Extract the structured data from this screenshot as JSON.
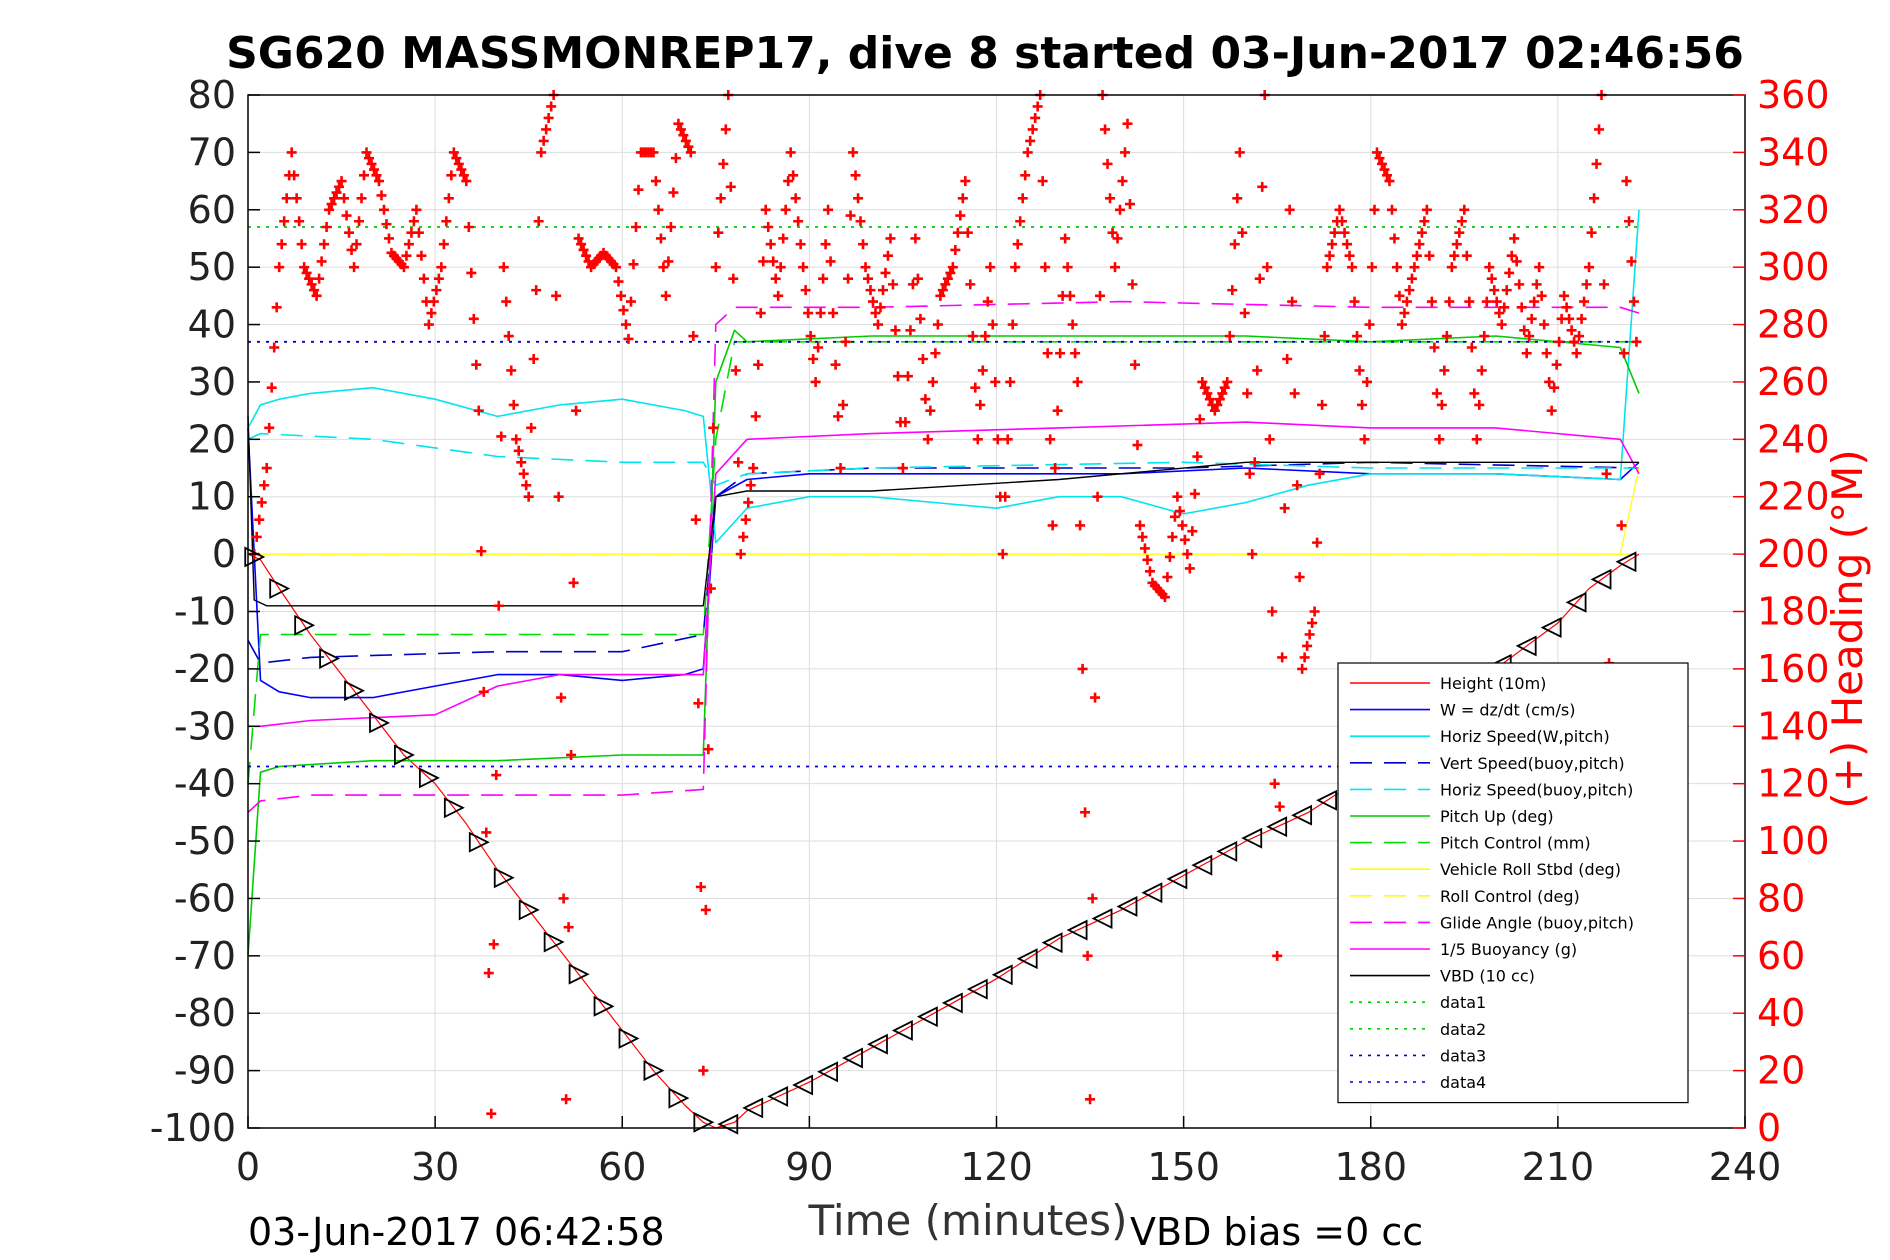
{
  "chart_data": {
    "type": "line",
    "title": "SG620 MASSMONREP17, dive 8 started 03-Jun-2017 02:46:56",
    "xlabel": "Time (minutes)",
    "ylabel_right": "(+) Heading (°M)",
    "xlim": [
      0,
      240
    ],
    "ylim": [
      -100,
      80
    ],
    "ylim_right": [
      0,
      360
    ],
    "x_ticks": [
      "0",
      "30",
      "60",
      "90",
      "120",
      "150",
      "180",
      "210",
      "240"
    ],
    "y_ticks": [
      "80",
      "70",
      "60",
      "50",
      "40",
      "30",
      "20",
      "10",
      "0",
      "-10",
      "-20",
      "-30",
      "-40",
      "-50",
      "-60",
      "-70",
      "-80",
      "-90",
      "-100"
    ],
    "y_right_ticks": [
      "360",
      "340",
      "320",
      "300",
      "280",
      "260",
      "240",
      "220",
      "200",
      "180",
      "160",
      "140",
      "120",
      "100",
      "80",
      "60",
      "40",
      "20",
      "0"
    ],
    "grid": true,
    "legend_position": "lower-right",
    "footer_left": "03-Jun-2017 06:42:58",
    "footer_right": "VBD bias =0 cc",
    "colors": {
      "height": "#ff0000",
      "w": "#0000ff",
      "hspeed": "#00e5ee",
      "vert_buoy": "#0000cc",
      "horiz_buoy": "#00e5ee",
      "pitch_up": "#00cc00",
      "pitch_ctrl": "#00dd00",
      "roll": "#ffff00",
      "roll_ctrl": "#ffff00",
      "glide": "#ff00ff",
      "buoyancy": "#ff00ff",
      "vbd": "#000000",
      "data12": "#00cc00",
      "data34": "#0000cc",
      "heading": "#ff0000"
    },
    "series": [
      {
        "key": "height",
        "name": "Height (10m)",
        "x": [
          0,
          2,
          5,
          10,
          15,
          20,
          25,
          30,
          35,
          40,
          45,
          50,
          55,
          60,
          65,
          70,
          73,
          75,
          78,
          80,
          90,
          100,
          110,
          120,
          130,
          140,
          150,
          160,
          170,
          180,
          190,
          200,
          210,
          215,
          220,
          223
        ],
        "values": [
          0,
          -1,
          -6,
          -14,
          -21,
          -28,
          -35,
          -40,
          -47,
          -55,
          -62,
          -69,
          -76,
          -83,
          -90,
          -96,
          -99,
          -100,
          -99,
          -97,
          -92,
          -86,
          -80,
          -74,
          -67,
          -62,
          -56,
          -50,
          -45,
          -38,
          -30,
          -20,
          -12,
          -6,
          -2,
          0
        ]
      },
      {
        "key": "w",
        "name": "W = dz/dt (cm/s)",
        "x": [
          0,
          2,
          5,
          10,
          20,
          30,
          40,
          50,
          60,
          70,
          73,
          75,
          80,
          90,
          100,
          120,
          140,
          160,
          180,
          200,
          220,
          223
        ],
        "values": [
          22,
          -22,
          -24,
          -25,
          -25,
          -23,
          -21,
          -21,
          -22,
          -21,
          -20,
          10,
          13,
          14,
          14,
          14,
          14,
          15,
          14,
          14,
          13,
          16
        ]
      },
      {
        "key": "hspeed",
        "name": "Horiz Speed(W,pitch)",
        "x": [
          0,
          2,
          5,
          10,
          20,
          30,
          40,
          50,
          60,
          70,
          73,
          75,
          80,
          90,
          100,
          110,
          120,
          130,
          140,
          150,
          160,
          170,
          180,
          200,
          220,
          223
        ],
        "values": [
          22,
          26,
          27,
          28,
          29,
          27,
          24,
          26,
          27,
          25,
          24,
          2,
          8,
          10,
          10,
          9,
          8,
          10,
          10,
          7,
          9,
          12,
          14,
          14,
          13,
          60
        ]
      },
      {
        "key": "vert_buoy",
        "name": "Vert Speed(buoy,pitch)",
        "x": [
          0,
          2,
          10,
          40,
          60,
          73,
          75,
          80,
          100,
          150,
          180,
          223
        ],
        "values": [
          -15,
          -19,
          -18,
          -17,
          -17,
          -14,
          10,
          14,
          15,
          15,
          16,
          15
        ]
      },
      {
        "key": "horiz_buoy",
        "name": "Horiz Speed(buoy,pitch)",
        "x": [
          0,
          2,
          20,
          40,
          60,
          73,
          75,
          80,
          100,
          150,
          180,
          223
        ],
        "values": [
          20,
          21,
          20,
          17,
          16,
          16,
          12,
          14,
          15,
          16,
          15,
          15
        ]
      },
      {
        "key": "pitch_up",
        "name": "Pitch Up (deg)",
        "x": [
          0,
          2,
          5,
          20,
          40,
          60,
          73,
          75,
          78,
          80,
          100,
          120,
          140,
          160,
          180,
          200,
          220,
          223
        ],
        "values": [
          -70,
          -38,
          -37,
          -36,
          -36,
          -35,
          -35,
          30,
          39,
          37,
          38,
          38,
          38,
          38,
          37,
          38,
          36,
          28
        ]
      },
      {
        "key": "pitch_ctrl",
        "name": "Pitch Control (mm)",
        "x": [
          0,
          2,
          73,
          75,
          78,
          223
        ],
        "values": [
          -40,
          -14,
          -14,
          20,
          37,
          37
        ]
      },
      {
        "key": "roll",
        "name": "Vehicle Roll Stbd (deg)",
        "x": [
          0,
          2,
          5,
          20,
          40,
          60,
          73,
          75,
          80,
          100,
          120,
          140,
          160,
          180,
          200,
          220,
          223
        ],
        "values": [
          0,
          0,
          0,
          0,
          0,
          0,
          0,
          0,
          0,
          0,
          0,
          0,
          0,
          0,
          0,
          0,
          15
        ]
      },
      {
        "key": "roll_ctrl",
        "name": "Roll Control (deg)",
        "x": [
          0,
          223
        ],
        "values": [
          0,
          0
        ]
      },
      {
        "key": "glide",
        "name": "Glide Angle (buoy,pitch)",
        "x": [
          0,
          2,
          10,
          40,
          60,
          73,
          75,
          78,
          100,
          140,
          180,
          220,
          223
        ],
        "values": [
          -45,
          -43,
          -42,
          -42,
          -42,
          -41,
          40,
          43,
          43,
          44,
          43,
          43,
          42
        ]
      },
      {
        "key": "buoyancy",
        "name": "1/5 Buoyancy (g)",
        "x": [
          0,
          2,
          10,
          30,
          40,
          50,
          60,
          73,
          75,
          80,
          100,
          130,
          160,
          180,
          200,
          220,
          223
        ],
        "values": [
          -30,
          -30,
          -29,
          -28,
          -23,
          -21,
          -21,
          -21,
          14,
          20,
          21,
          22,
          23,
          22,
          22,
          20,
          14
        ]
      },
      {
        "key": "vbd",
        "name": "VBD (10 cc)",
        "x": [
          0,
          1,
          3,
          73,
          75,
          80,
          100,
          130,
          160,
          180,
          223
        ],
        "values": [
          24,
          -8,
          -9,
          -9,
          10,
          11,
          11,
          13,
          16,
          16,
          16
        ]
      },
      {
        "key": "data1",
        "name": "data1",
        "x": [
          0,
          223
        ],
        "values": [
          57,
          57
        ]
      },
      {
        "key": "data2",
        "name": "data2",
        "x": [
          0,
          223
        ],
        "values": [
          57,
          57
        ]
      },
      {
        "key": "data3",
        "name": "data3",
        "x": [
          0,
          223
        ],
        "values": [
          37,
          37
        ]
      },
      {
        "key": "data4",
        "name": "data4",
        "x": [
          0,
          223
        ],
        "values": [
          -37,
          -37
        ]
      }
    ],
    "heading": {
      "name": "(+) Heading",
      "x": [
        1,
        3,
        5,
        7,
        9,
        11,
        13,
        15,
        17,
        19,
        21,
        23,
        25,
        27,
        29,
        31,
        33,
        35,
        37,
        39,
        41,
        43,
        45,
        47,
        49,
        51,
        53,
        55,
        57,
        59,
        61,
        63,
        65,
        67,
        69,
        71,
        73,
        75,
        77,
        79,
        81,
        83,
        85,
        87,
        89,
        91,
        93,
        95,
        97,
        99,
        101,
        103,
        105,
        107,
        109,
        111,
        113,
        115,
        117,
        119,
        121,
        123,
        125,
        127,
        129,
        131,
        133,
        135,
        137,
        139,
        141,
        143,
        145,
        147,
        149,
        151,
        153,
        155,
        157,
        159,
        161,
        163,
        165,
        167,
        169,
        171,
        173,
        175,
        177,
        179,
        181,
        183,
        185,
        187,
        189,
        191,
        193,
        195,
        197,
        199,
        201,
        203,
        205,
        207,
        209,
        211,
        213,
        215,
        217,
        219,
        221,
        223
      ],
      "values": [
        200,
        230,
        300,
        340,
        300,
        290,
        320,
        330,
        300,
        340,
        330,
        305,
        300,
        320,
        280,
        300,
        340,
        330,
        250,
        5,
        300,
        240,
        220,
        340,
        360,
        10,
        310,
        300,
        305,
        300,
        275,
        340,
        340,
        290,
        350,
        340,
        20,
        300,
        360,
        200,
        230,
        320,
        290,
        340,
        300,
        260,
        320,
        230,
        340,
        300,
        280,
        310,
        230,
        310,
        240,
        290,
        300,
        330,
        240,
        300,
        200,
        300,
        340,
        360,
        210,
        310,
        260,
        10,
        360,
        300,
        350,
        210,
        190,
        185,
        220,
        195,
        260,
        250,
        260,
        340,
        200,
        360,
        60,
        320,
        160,
        180,
        300,
        320,
        300,
        240,
        340,
        330,
        280,
        300,
        320,
        240,
        300,
        320,
        240,
        300,
        280,
        310,
        270,
        300,
        250,
        290,
        270,
        300,
        360,
        30,
        330,
        260
      ]
    }
  }
}
